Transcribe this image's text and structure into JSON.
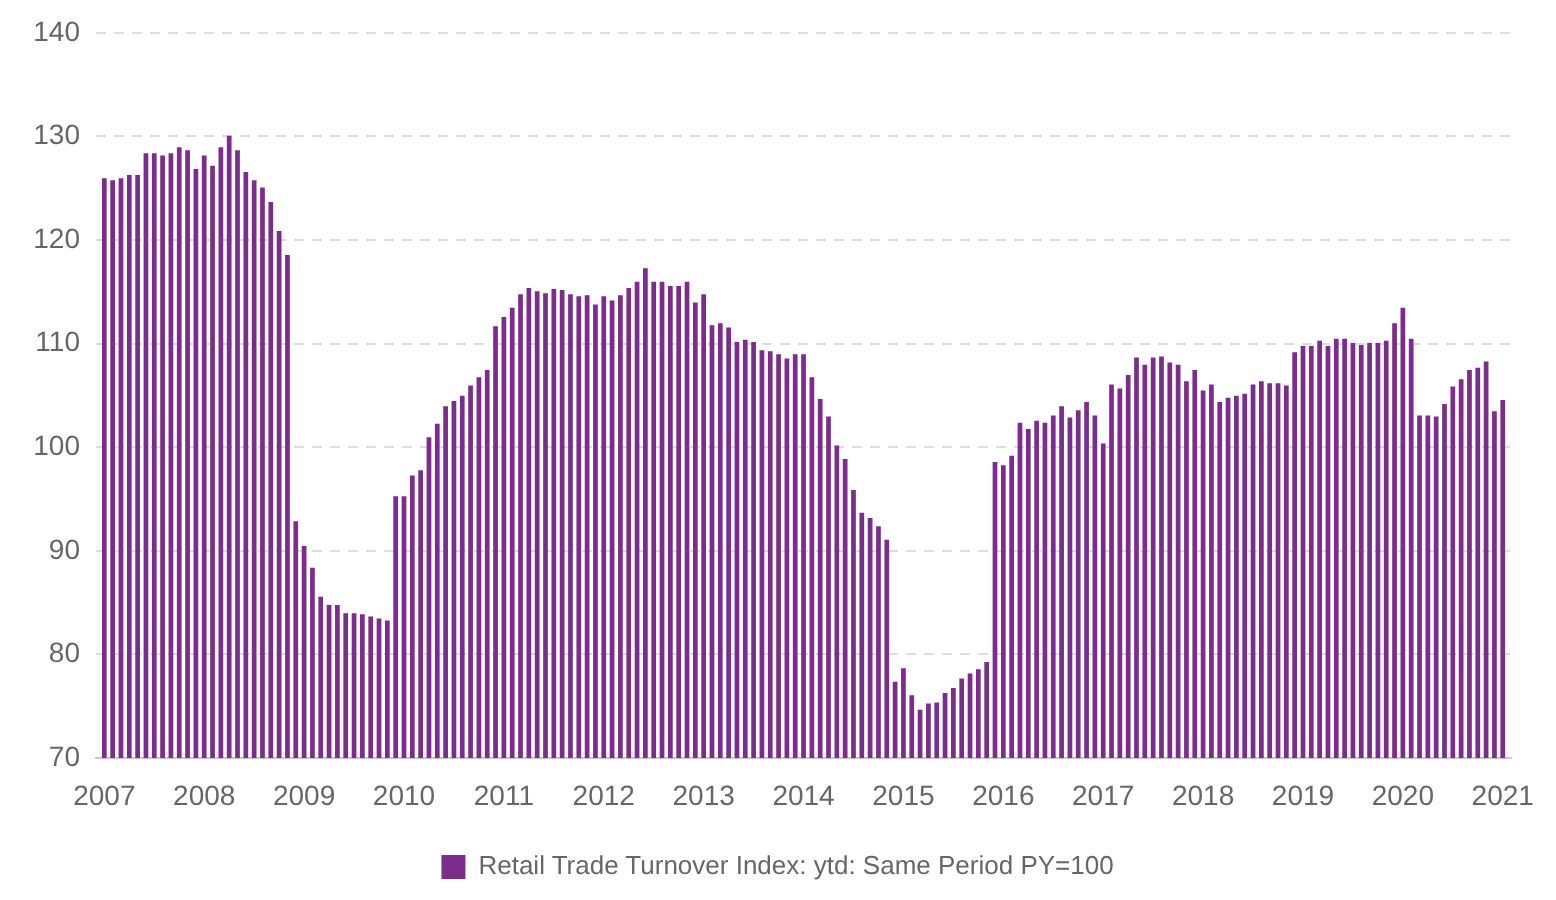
{
  "chart_data": {
    "type": "bar",
    "x": [
      "2007-01",
      "2007-02",
      "2007-03",
      "2007-04",
      "2007-05",
      "2007-06",
      "2007-07",
      "2007-08",
      "2007-09",
      "2007-10",
      "2007-11",
      "2007-12",
      "2008-01",
      "2008-02",
      "2008-03",
      "2008-04",
      "2008-05",
      "2008-06",
      "2008-07",
      "2008-08",
      "2008-09",
      "2008-10",
      "2008-11",
      "2008-12",
      "2009-01",
      "2009-02",
      "2009-03",
      "2009-04",
      "2009-05",
      "2009-06",
      "2009-07",
      "2009-08",
      "2009-09",
      "2009-10",
      "2009-11",
      "2009-12",
      "2010-01",
      "2010-02",
      "2010-03",
      "2010-04",
      "2010-05",
      "2010-06",
      "2010-07",
      "2010-08",
      "2010-09",
      "2010-10",
      "2010-11",
      "2010-12",
      "2011-01",
      "2011-02",
      "2011-03",
      "2011-04",
      "2011-05",
      "2011-06",
      "2011-07",
      "2011-08",
      "2011-09",
      "2011-10",
      "2011-11",
      "2011-12",
      "2012-01",
      "2012-02",
      "2012-03",
      "2012-04",
      "2012-05",
      "2012-06",
      "2012-07",
      "2012-08",
      "2012-09",
      "2012-10",
      "2012-11",
      "2012-12",
      "2013-01",
      "2013-02",
      "2013-03",
      "2013-04",
      "2013-05",
      "2013-06",
      "2013-07",
      "2013-08",
      "2013-09",
      "2013-10",
      "2013-11",
      "2013-12",
      "2014-01",
      "2014-02",
      "2014-03",
      "2014-04",
      "2014-05",
      "2014-06",
      "2014-07",
      "2014-08",
      "2014-09",
      "2014-10",
      "2014-11",
      "2014-12",
      "2015-01",
      "2015-02",
      "2015-03",
      "2015-04",
      "2015-05",
      "2015-06",
      "2015-07",
      "2015-08",
      "2015-09",
      "2015-10",
      "2015-11",
      "2015-12",
      "2016-01",
      "2016-02",
      "2016-03",
      "2016-04",
      "2016-05",
      "2016-06",
      "2016-07",
      "2016-08",
      "2016-09",
      "2016-10",
      "2016-11",
      "2016-12",
      "2017-01",
      "2017-02",
      "2017-03",
      "2017-04",
      "2017-05",
      "2017-06",
      "2017-07",
      "2017-08",
      "2017-09",
      "2017-10",
      "2017-11",
      "2017-12",
      "2018-01",
      "2018-02",
      "2018-03",
      "2018-04",
      "2018-05",
      "2018-06",
      "2018-07",
      "2018-08",
      "2018-09",
      "2018-10",
      "2018-11",
      "2018-12",
      "2019-01",
      "2019-02",
      "2019-03",
      "2019-04",
      "2019-05",
      "2019-06",
      "2019-07",
      "2019-08",
      "2019-09",
      "2019-10",
      "2019-11",
      "2019-12",
      "2020-01",
      "2020-02",
      "2020-03",
      "2020-04",
      "2020-05",
      "2020-06",
      "2020-07",
      "2020-08",
      "2020-09",
      "2020-10",
      "2020-11",
      "2020-12",
      "2021-01"
    ],
    "series": [
      {
        "name": "Retail Trade Turnover Index: ytd: Same Period PY=100",
        "color": "#7b2c8c",
        "values": [
          125.9,
          125.7,
          125.9,
          126.2,
          126.2,
          128.3,
          128.3,
          128.1,
          128.3,
          128.9,
          128.6,
          126.8,
          128.1,
          127.1,
          128.9,
          130.0,
          128.6,
          126.5,
          125.7,
          125.0,
          123.6,
          120.8,
          118.5,
          92.8,
          90.4,
          88.3,
          85.5,
          84.7,
          84.7,
          83.9,
          83.9,
          83.8,
          83.6,
          83.4,
          83.2,
          95.2,
          95.2,
          97.2,
          97.7,
          100.9,
          102.2,
          103.9,
          104.4,
          104.9,
          105.9,
          106.7,
          107.4,
          111.6,
          112.5,
          113.4,
          114.7,
          115.3,
          115.0,
          114.8,
          115.2,
          115.1,
          114.7,
          114.5,
          114.6,
          113.7,
          114.5,
          114.1,
          114.6,
          115.3,
          115.9,
          117.2,
          115.9,
          115.9,
          115.5,
          115.5,
          115.9,
          113.9,
          114.7,
          111.7,
          111.9,
          111.5,
          110.1,
          110.3,
          110.1,
          109.3,
          109.2,
          108.9,
          108.5,
          108.9,
          108.9,
          106.7,
          104.6,
          102.9,
          100.1,
          98.8,
          95.8,
          93.6,
          93.1,
          92.3,
          91.0,
          77.3,
          78.6,
          76.0,
          74.6,
          75.2,
          75.3,
          76.2,
          76.7,
          77.6,
          78.1,
          78.5,
          79.2,
          98.5,
          98.2,
          99.1,
          102.3,
          101.7,
          102.5,
          102.3,
          103.0,
          103.9,
          102.8,
          103.5,
          104.3,
          103.0,
          100.3,
          106.0,
          105.6,
          106.9,
          108.6,
          107.9,
          108.6,
          108.7,
          108.1,
          107.9,
          106.3,
          107.4,
          105.4,
          106.0,
          104.3,
          104.7,
          104.9,
          105.1,
          106.0,
          106.3,
          106.1,
          106.1,
          105.9,
          109.1,
          109.7,
          109.7,
          110.2,
          109.7,
          110.4,
          110.4,
          110.0,
          109.8,
          110.0,
          110.0,
          110.2,
          111.9,
          113.4,
          110.4,
          103.0,
          103.0,
          102.9,
          104.1,
          105.8,
          106.5,
          107.4,
          107.6,
          108.2,
          103.4,
          104.5
        ]
      }
    ],
    "xlim": [
      "2006-12",
      "2021-02"
    ],
    "xticks": [
      "2007",
      "2008",
      "2009",
      "2010",
      "2011",
      "2012",
      "2013",
      "2014",
      "2015",
      "2016",
      "2017",
      "2018",
      "2019",
      "2020",
      "2021"
    ],
    "ylim": [
      70,
      140
    ],
    "yticks": [
      70,
      80,
      90,
      100,
      110,
      120,
      130,
      140
    ],
    "grid": "y",
    "legend": "bottom"
  }
}
